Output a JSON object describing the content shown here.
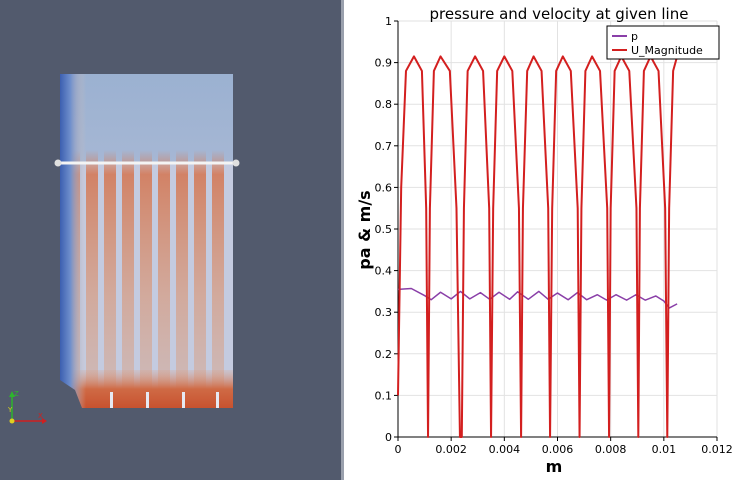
{
  "colors": {
    "viewport_bg": "#525a6d",
    "p_series": "#8a3fa8",
    "u_series": "#d31f1f"
  },
  "viewport": {
    "axes_triad": {
      "x": "X",
      "y": "Y",
      "z": "Z"
    }
  },
  "chart_data": {
    "type": "line",
    "title": "pressure and velocity at given line",
    "xlabel": "m",
    "ylabel": "pa & m/s",
    "xlim": [
      0,
      0.012
    ],
    "ylim": [
      0,
      1
    ],
    "xticks": [
      "0",
      "0.002",
      "0.004",
      "0.006",
      "0.008",
      "0.01",
      "0.012"
    ],
    "yticks": [
      "0",
      "0.1",
      "0.2",
      "0.3",
      "0.4",
      "0.5",
      "0.6",
      "0.7",
      "0.8",
      "0.9",
      "1"
    ],
    "grid": true,
    "legend_position": "top-right",
    "series": [
      {
        "name": "p",
        "color": "#8a3fa8",
        "x": [
          0,
          0.0005,
          0.001,
          0.00125,
          0.0016,
          0.002,
          0.00235,
          0.0027,
          0.0031,
          0.00345,
          0.0038,
          0.0042,
          0.0045,
          0.0049,
          0.0053,
          0.00565,
          0.006,
          0.0064,
          0.00675,
          0.0071,
          0.0075,
          0.00785,
          0.0082,
          0.0086,
          0.00895,
          0.0093,
          0.0097,
          0.01,
          0.0102,
          0.0105
        ],
        "y": [
          0.355,
          0.357,
          0.34,
          0.33,
          0.348,
          0.332,
          0.35,
          0.332,
          0.347,
          0.331,
          0.348,
          0.331,
          0.349,
          0.331,
          0.35,
          0.331,
          0.346,
          0.33,
          0.347,
          0.33,
          0.342,
          0.329,
          0.342,
          0.329,
          0.342,
          0.329,
          0.339,
          0.327,
          0.31,
          0.32
        ]
      },
      {
        "name": "U_Magnitude",
        "color": "#d31f1f",
        "x": [
          0,
          0.00012,
          0.0003,
          0.0006,
          0.0009,
          0.00106,
          0.00113,
          0.0012,
          0.00135,
          0.0016,
          0.00195,
          0.0022,
          0.00233,
          0.0024,
          0.00248,
          0.00262,
          0.0029,
          0.0032,
          0.00343,
          0.0035,
          0.00358,
          0.00373,
          0.004,
          0.0043,
          0.00455,
          0.00463,
          0.0047,
          0.00486,
          0.0051,
          0.0054,
          0.00565,
          0.00572,
          0.0058,
          0.00595,
          0.0062,
          0.0065,
          0.00676,
          0.00683,
          0.0069,
          0.00705,
          0.0073,
          0.0076,
          0.00787,
          0.00794,
          0.008,
          0.00815,
          0.0084,
          0.0087,
          0.00897,
          0.00904,
          0.0091,
          0.00925,
          0.0095,
          0.0098,
          0.01005,
          0.01013,
          0.0102,
          0.01035,
          0.0105
        ],
        "y": [
          0.1,
          0.6,
          0.88,
          0.915,
          0.88,
          0.55,
          0.0,
          0.55,
          0.88,
          0.915,
          0.88,
          0.55,
          0.0,
          0.0,
          0.55,
          0.88,
          0.915,
          0.88,
          0.55,
          0.0,
          0.55,
          0.88,
          0.915,
          0.88,
          0.55,
          0.0,
          0.55,
          0.88,
          0.915,
          0.88,
          0.55,
          0.0,
          0.55,
          0.88,
          0.915,
          0.88,
          0.55,
          0.0,
          0.55,
          0.88,
          0.915,
          0.88,
          0.55,
          0.0,
          0.55,
          0.88,
          0.915,
          0.88,
          0.55,
          0.0,
          0.55,
          0.88,
          0.915,
          0.88,
          0.55,
          0.0,
          0.55,
          0.88,
          0.915
        ]
      }
    ]
  }
}
